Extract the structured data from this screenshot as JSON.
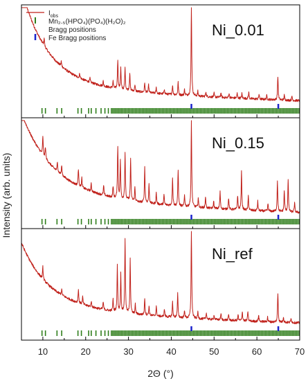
{
  "chart_data": {
    "type": "line",
    "ylabel": "Intensity (arb. units)",
    "xlabel": "2Θ (°)",
    "xlim": [
      5,
      70
    ],
    "x_ticks": [
      10,
      20,
      30,
      40,
      50,
      60,
      70
    ],
    "x_tick_labels": [
      "10",
      "20",
      "30",
      "40",
      "50",
      "60",
      "70"
    ],
    "colors": {
      "observed": "#c0201a",
      "mn_bragg": "#2e7d1a",
      "fe_bragg": "#1a22cc",
      "axes": "#000000"
    },
    "legend": {
      "placement": "top-left",
      "entries": [
        {
          "key": "obs",
          "base": "I",
          "sub": "obs"
        },
        {
          "key": "mn",
          "text": "Mn₂.₅(HPO₄)(PO₄)(H₂O)₂"
        },
        {
          "key": "mn_bragg",
          "text": "Bragg positions"
        },
        {
          "key": "fe",
          "text": "Fe Bragg positions"
        }
      ]
    },
    "fe_bragg_positions": [
      44.7,
      65.0
    ],
    "mn_bragg_band_start": 26,
    "mn_bragg_band_end": 70,
    "mn_bragg_positions_low": [
      9.8,
      10.6,
      13.3,
      14.4,
      18.2,
      19.0,
      20.7,
      21.3,
      22.4,
      23.6,
      24.5,
      25.3
    ],
    "panels": [
      {
        "name": "Ni_0.01",
        "background": {
          "a": 0.93,
          "b": 0.16,
          "tau": 6,
          "floor": 0.1,
          "slope": 0.0011
        },
        "peaks": [
          [
            10.3,
            0.08
          ],
          [
            14.3,
            0.05
          ],
          [
            18.6,
            0.05
          ],
          [
            21.0,
            0.04
          ],
          [
            24.1,
            0.05
          ],
          [
            26.4,
            0.07
          ],
          [
            27.5,
            0.3
          ],
          [
            28.2,
            0.22
          ],
          [
            29.2,
            0.23
          ],
          [
            30.3,
            0.18
          ],
          [
            31.5,
            0.07
          ],
          [
            33.8,
            0.1
          ],
          [
            34.7,
            0.08
          ],
          [
            36.5,
            0.06
          ],
          [
            38.4,
            0.05
          ],
          [
            40.3,
            0.1
          ],
          [
            41.6,
            0.13
          ],
          [
            43.1,
            0.06
          ],
          [
            44.7,
            0.95
          ],
          [
            46.2,
            0.05
          ],
          [
            48.1,
            0.05
          ],
          [
            50.0,
            0.04
          ],
          [
            51.6,
            0.05
          ],
          [
            53.5,
            0.05
          ],
          [
            55.4,
            0.05
          ],
          [
            56.5,
            0.05
          ],
          [
            58.1,
            0.07
          ],
          [
            60.5,
            0.05
          ],
          [
            62.3,
            0.04
          ],
          [
            64.9,
            0.24
          ],
          [
            66.4,
            0.05
          ],
          [
            68.2,
            0.04
          ]
        ]
      },
      {
        "name": "Ni_0.15",
        "background": {
          "a": 0.78,
          "b": 0.22,
          "tau": 7,
          "floor": 0.08,
          "slope": 0.001
        },
        "peaks": [
          [
            10.0,
            0.2
          ],
          [
            10.6,
            0.12
          ],
          [
            13.4,
            0.1
          ],
          [
            14.4,
            0.1
          ],
          [
            18.3,
            0.18
          ],
          [
            19.1,
            0.1
          ],
          [
            21.3,
            0.08
          ],
          [
            24.2,
            0.1
          ],
          [
            26.4,
            0.12
          ],
          [
            27.5,
            0.55
          ],
          [
            28.1,
            0.4
          ],
          [
            29.2,
            0.5
          ],
          [
            30.5,
            0.45
          ],
          [
            31.5,
            0.15
          ],
          [
            33.8,
            0.38
          ],
          [
            34.8,
            0.2
          ],
          [
            36.5,
            0.12
          ],
          [
            38.3,
            0.1
          ],
          [
            40.3,
            0.3
          ],
          [
            41.6,
            0.38
          ],
          [
            43.1,
            0.12
          ],
          [
            44.7,
            0.92
          ],
          [
            46.3,
            0.1
          ],
          [
            48.0,
            0.12
          ],
          [
            49.9,
            0.08
          ],
          [
            51.4,
            0.18
          ],
          [
            53.4,
            0.12
          ],
          [
            55.5,
            0.15
          ],
          [
            56.4,
            0.42
          ],
          [
            58.0,
            0.15
          ],
          [
            60.2,
            0.1
          ],
          [
            62.6,
            0.08
          ],
          [
            64.8,
            0.33
          ],
          [
            66.4,
            0.22
          ],
          [
            67.3,
            0.35
          ],
          [
            68.8,
            0.1
          ]
        ]
      },
      {
        "name": "Ni_ref",
        "background": {
          "a": 0.6,
          "b": 0.2,
          "tau": 6,
          "floor": 0.08,
          "slope": 0.0008
        },
        "peaks": [
          [
            10.0,
            0.13
          ],
          [
            14.4,
            0.06
          ],
          [
            18.3,
            0.14
          ],
          [
            19.3,
            0.08
          ],
          [
            21.3,
            0.06
          ],
          [
            24.1,
            0.08
          ],
          [
            26.4,
            0.12
          ],
          [
            27.4,
            0.48
          ],
          [
            28.2,
            0.4
          ],
          [
            29.2,
            0.78
          ],
          [
            30.4,
            0.58
          ],
          [
            31.6,
            0.1
          ],
          [
            33.8,
            0.18
          ],
          [
            34.8,
            0.1
          ],
          [
            36.5,
            0.1
          ],
          [
            38.4,
            0.08
          ],
          [
            40.3,
            0.16
          ],
          [
            41.5,
            0.25
          ],
          [
            43.1,
            0.08
          ],
          [
            44.7,
            0.95
          ],
          [
            46.2,
            0.07
          ],
          [
            48.2,
            0.07
          ],
          [
            50.0,
            0.05
          ],
          [
            51.6,
            0.07
          ],
          [
            53.4,
            0.06
          ],
          [
            55.6,
            0.06
          ],
          [
            56.6,
            0.1
          ],
          [
            57.9,
            0.1
          ],
          [
            60.4,
            0.07
          ],
          [
            62.5,
            0.05
          ],
          [
            64.9,
            0.3
          ],
          [
            66.2,
            0.06
          ],
          [
            68.0,
            0.05
          ]
        ]
      }
    ]
  }
}
